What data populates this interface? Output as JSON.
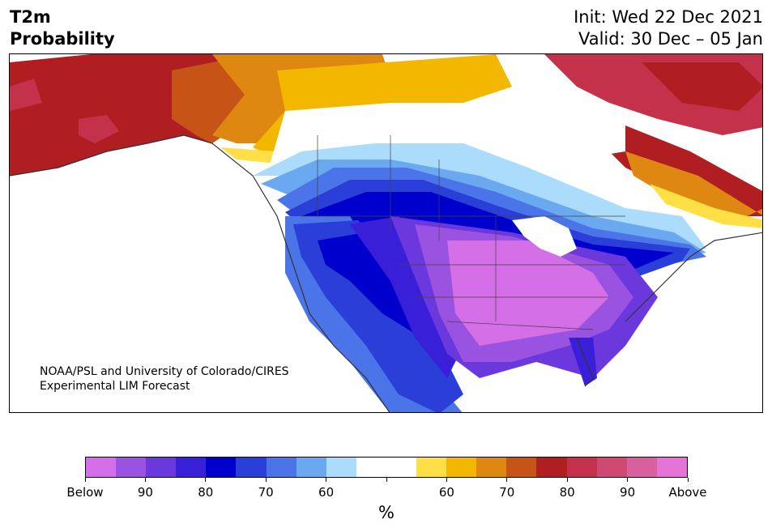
{
  "header": {
    "variable": "T2m",
    "product": "Probability",
    "init": "Init: Wed 22 Dec 2021",
    "valid": "Valid: 30 Dec – 05 Jan"
  },
  "map": {
    "region": "North America",
    "credit_line1": "NOAA/PSL and University of Colorado/CIRES",
    "credit_line2": "Experimental LIM Forecast"
  },
  "colorbar": {
    "unit": "%",
    "labels": [
      "Below",
      "90",
      "80",
      "70",
      "60",
      "",
      "60",
      "70",
      "80",
      "90",
      "Above"
    ],
    "colors": [
      "#d46fe8",
      "#9a52e0",
      "#6a38dc",
      "#3a1fd8",
      "#0000cc",
      "#2a3ed8",
      "#4a74e8",
      "#6aa8f0",
      "#acdcfb",
      "#ffffff",
      "#ffffff",
      "#fedf46",
      "#f3b700",
      "#de8811",
      "#c65417",
      "#b01e22",
      "#c3324a",
      "#cf4a72",
      "#d9609f",
      "#e474d6"
    ]
  }
}
